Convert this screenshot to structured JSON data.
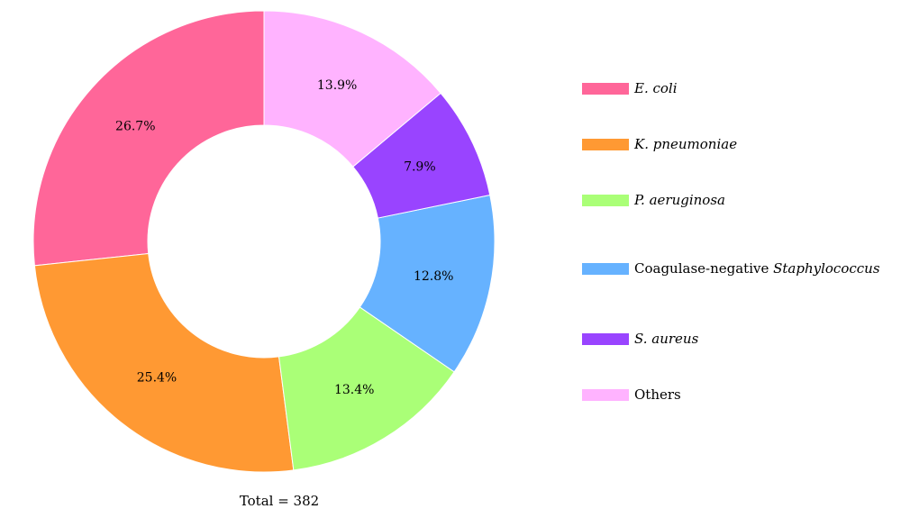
{
  "chart_data": {
    "type": "pie",
    "donut": true,
    "categories": [
      {
        "parts": [
          {
            "text": "E. coli",
            "italic": true
          }
        ]
      },
      {
        "parts": [
          {
            "text": "K. pneumoniae",
            "italic": true
          }
        ]
      },
      {
        "parts": [
          {
            "text": "P. aeruginosa",
            "italic": true
          }
        ]
      },
      {
        "parts": [
          {
            "text": "Coagulase-negative ",
            "italic": false
          },
          {
            "text": "Staphylococcus",
            "italic": true
          }
        ]
      },
      {
        "parts": [
          {
            "text": "S. aureus",
            "italic": true
          }
        ]
      },
      {
        "parts": [
          {
            "text": "Others",
            "italic": false
          }
        ]
      }
    ],
    "values": [
      26.7,
      25.4,
      13.4,
      12.8,
      7.9,
      13.9
    ],
    "value_labels": [
      "26.7%",
      "25.4%",
      "13.4%",
      "12.8%",
      "7.9%",
      "13.9%"
    ],
    "colors": [
      "#FF6699",
      "#FF9933",
      "#AAFF77",
      "#66B2FF",
      "#9944FF",
      "#FFB3FF"
    ],
    "start_angle_deg": -90,
    "direction": "counterclockwise",
    "legend_position": "right",
    "total_label": "Total = 382"
  }
}
